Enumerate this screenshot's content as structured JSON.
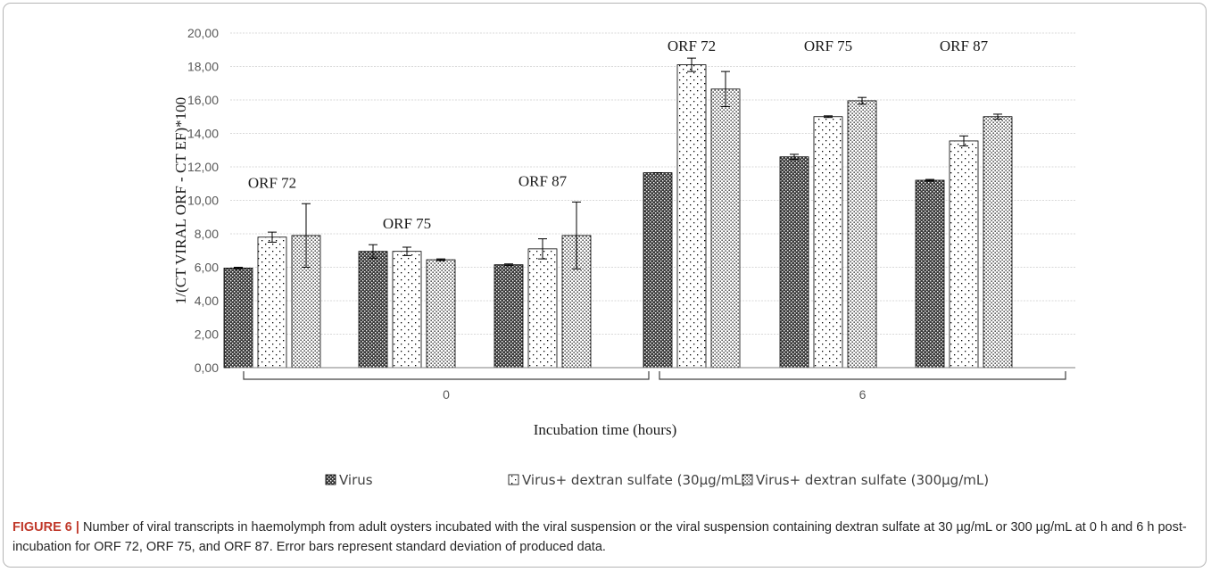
{
  "chart_data": {
    "type": "bar",
    "title": "",
    "xlabel": "Incubation time (hours)",
    "ylabel": "1/(CT VIRAL ORF - CT EF)*100",
    "ylim": [
      0,
      20
    ],
    "yticks": [
      "0,00",
      "2,00",
      "4,00",
      "6,00",
      "8,00",
      "10,00",
      "12,00",
      "14,00",
      "16,00",
      "18,00",
      "20,00"
    ],
    "grid": true,
    "legend_position": "bottom",
    "time_groups": [
      "0",
      "6"
    ],
    "subgroups": [
      "ORF 72",
      "ORF 75",
      "ORF 87"
    ],
    "series": [
      {
        "name": "Virus",
        "pattern": "dense-dark",
        "values": [
          5.95,
          6.95,
          6.15,
          11.65,
          12.6,
          11.2
        ],
        "errors": [
          0.05,
          0.4,
          0.05,
          0.0,
          0.15,
          0.05
        ]
      },
      {
        "name": "Virus+ dextran sulfate (30µg/mL)",
        "pattern": "sparse-dots",
        "values": [
          7.8,
          6.95,
          7.1,
          18.1,
          15.0,
          13.55
        ],
        "errors": [
          0.3,
          0.25,
          0.6,
          0.4,
          0.05,
          0.3
        ]
      },
      {
        "name": "Virus+ dextran sulfate (300µg/mL)",
        "pattern": "medium-dots",
        "values": [
          7.9,
          6.45,
          7.9,
          16.65,
          15.95,
          15.0
        ],
        "errors": [
          1.9,
          0.05,
          2.0,
          1.05,
          0.2,
          0.15
        ]
      }
    ]
  },
  "caption": {
    "label": "FIGURE 6 |",
    "text": "Number of viral transcripts in haemolymph from adult oysters incubated with the viral suspension or the viral suspension containing dextran sulfate at 30 µg/mL or 300 µg/mL at 0 h and 6 h post-incubation for ORF 72, ORF 75, and ORF 87. Error bars represent standard deviation of produced data."
  },
  "colors": {
    "grid": "#d9d9d9",
    "bar_stroke": "#000000",
    "caption_label": "#c0392b"
  }
}
